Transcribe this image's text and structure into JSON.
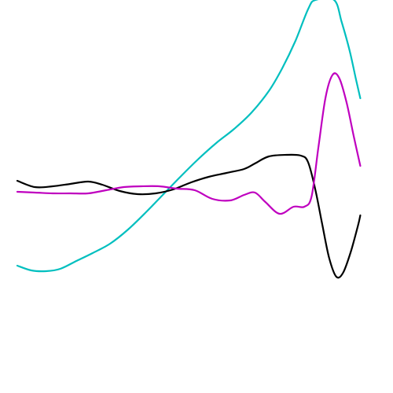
{
  "chart_data": {
    "type": "line",
    "title": "",
    "xlabel": "",
    "ylabel": "",
    "grid": false,
    "legend": "none",
    "xlim": [
      0,
      100
    ],
    "ylim": [
      0,
      100
    ],
    "series": [
      {
        "color": "#00BFBF",
        "points": [
          [
            0,
            32.4
          ],
          [
            3.9,
            31.2
          ],
          [
            8.0,
            31.0
          ],
          [
            12.0,
            31.6
          ],
          [
            16.5,
            33.6
          ],
          [
            21.0,
            35.6
          ],
          [
            25.9,
            38.0
          ],
          [
            30.9,
            41.6
          ],
          [
            35.9,
            46.0
          ],
          [
            40.8,
            50.6
          ],
          [
            45.7,
            55.2
          ],
          [
            50.6,
            59.6
          ],
          [
            55.5,
            63.6
          ],
          [
            60.5,
            67.2
          ],
          [
            65.4,
            71.4
          ],
          [
            70.3,
            77.0
          ],
          [
            73.9,
            82.6
          ],
          [
            77.6,
            89.6
          ],
          [
            81.2,
            97.8
          ],
          [
            83.2,
            100
          ],
          [
            88.4,
            100
          ],
          [
            90.5,
            94.4
          ],
          [
            92.7,
            87.2
          ],
          [
            94.5,
            79.8
          ],
          [
            95.7,
            75.0
          ]
        ]
      },
      {
        "color": "#000000",
        "points": [
          [
            0,
            54.0
          ],
          [
            4.9,
            52.4
          ],
          [
            9.9,
            52.6
          ],
          [
            14.8,
            53.2
          ],
          [
            19.8,
            53.8
          ],
          [
            23.7,
            53.0
          ],
          [
            28.6,
            51.4
          ],
          [
            33.6,
            50.6
          ],
          [
            38.6,
            50.8
          ],
          [
            43.5,
            51.8
          ],
          [
            48.5,
            53.6
          ],
          [
            53.4,
            55.0
          ],
          [
            58.4,
            56.0
          ],
          [
            63.3,
            57.0
          ],
          [
            66.3,
            58.4
          ],
          [
            70.2,
            60.2
          ],
          [
            75.2,
            60.6
          ],
          [
            79.1,
            60.4
          ],
          [
            81.1,
            58.8
          ],
          [
            83.1,
            52.0
          ],
          [
            85.1,
            42.8
          ],
          [
            87.0,
            34.4
          ],
          [
            89.0,
            29.6
          ],
          [
            90.9,
            30.6
          ],
          [
            93.0,
            35.8
          ],
          [
            95.0,
            42.4
          ],
          [
            95.7,
            45.2
          ]
        ]
      },
      {
        "color": "#BF00BF",
        "points": [
          [
            0,
            51.2
          ],
          [
            4.9,
            51.0
          ],
          [
            9.9,
            50.8
          ],
          [
            14.8,
            50.8
          ],
          [
            19.8,
            50.8
          ],
          [
            24.8,
            51.6
          ],
          [
            29.7,
            52.4
          ],
          [
            34.6,
            52.6
          ],
          [
            39.6,
            52.6
          ],
          [
            44.5,
            52.0
          ],
          [
            49.5,
            51.6
          ],
          [
            54.4,
            49.4
          ],
          [
            59.4,
            49.0
          ],
          [
            63.3,
            50.4
          ],
          [
            66.3,
            51.0
          ],
          [
            69.2,
            48.6
          ],
          [
            73.2,
            45.6
          ],
          [
            77.1,
            47.4
          ],
          [
            80.1,
            47.4
          ],
          [
            82.1,
            50.0
          ],
          [
            84.0,
            62.4
          ],
          [
            86.0,
            75.2
          ],
          [
            88.0,
            81.0
          ],
          [
            89.9,
            80.0
          ],
          [
            91.9,
            73.8
          ],
          [
            93.9,
            65.2
          ],
          [
            95.7,
            57.8
          ]
        ]
      }
    ]
  }
}
